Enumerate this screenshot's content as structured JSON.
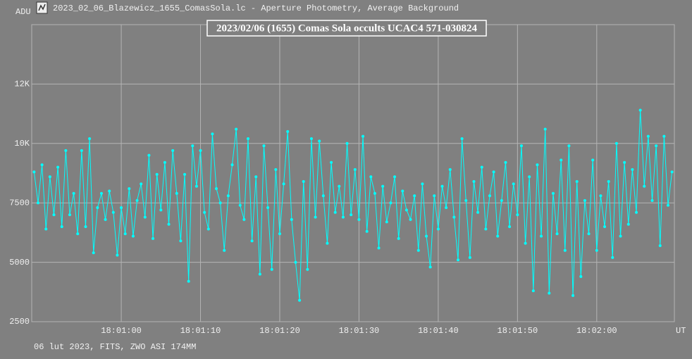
{
  "window_title": "2023_02_06_Blazewicz_1655_ComasSola.lc - Aperture Photometry, Average Background",
  "footer": "06 lut 2023, FITS, ZWO ASI 174MM",
  "chart_data": {
    "type": "line",
    "title": "2023/02/06 (1655) Comas Sola occults UCAC4 571-030824",
    "y_label": "ADU",
    "x_label": "UT",
    "color": "#00ffff",
    "grid": true,
    "xlim": [
      64848.7,
      64929.8
    ],
    "xticks": [
      {
        "value": 64860,
        "label": "18:01:00"
      },
      {
        "value": 64870,
        "label": "18:01:10"
      },
      {
        "value": 64880,
        "label": "18:01:20"
      },
      {
        "value": 64890,
        "label": "18:01:30"
      },
      {
        "value": 64900,
        "label": "18:01:40"
      },
      {
        "value": 64910,
        "label": "18:01:50"
      },
      {
        "value": 64920,
        "label": "18:02:00"
      }
    ],
    "ylim": [
      2500,
      15000
    ],
    "yticks": [
      2500,
      5000,
      7500,
      {
        "value": 10000,
        "label": "10K"
      },
      {
        "value": 12500,
        "label": "12K"
      }
    ],
    "x": [
      64849,
      64849.5,
      64850,
      64850.5,
      64851,
      64851.5,
      64852,
      64852.5,
      64853,
      64853.5,
      64854,
      64854.5,
      64855,
      64855.5,
      64856,
      64856.5,
      64857,
      64857.5,
      64858,
      64858.5,
      64859,
      64859.5,
      64860,
      64860.5,
      64861,
      64861.5,
      64862,
      64862.5,
      64863,
      64863.5,
      64864,
      64864.5,
      64865,
      64865.5,
      64866,
      64866.5,
      64867,
      64867.5,
      64868,
      64868.5,
      64869,
      64869.5,
      64870,
      64870.5,
      64871,
      64871.5,
      64872,
      64872.5,
      64873,
      64873.5,
      64874,
      64874.5,
      64875,
      64875.5,
      64876,
      64876.5,
      64877,
      64877.5,
      64878,
      64878.5,
      64879,
      64879.5,
      64880,
      64880.5,
      64881,
      64881.5,
      64882,
      64882.5,
      64883,
      64883.5,
      64884,
      64884.5,
      64885,
      64885.5,
      64886,
      64886.5,
      64887,
      64887.5,
      64888,
      64888.5,
      64889,
      64889.5,
      64890,
      64890.5,
      64891,
      64891.5,
      64892,
      64892.5,
      64893,
      64893.5,
      64894,
      64894.5,
      64895,
      64895.5,
      64896,
      64896.5,
      64897,
      64897.5,
      64898,
      64898.5,
      64899,
      64899.5,
      64900,
      64900.5,
      64901,
      64901.5,
      64902,
      64902.5,
      64903,
      64903.5,
      64904,
      64904.5,
      64905,
      64905.5,
      64906,
      64906.5,
      64907,
      64907.5,
      64908,
      64908.5,
      64909,
      64909.5,
      64910,
      64910.5,
      64911,
      64911.5,
      64912,
      64912.5,
      64913,
      64913.5,
      64914,
      64914.5,
      64915,
      64915.5,
      64916,
      64916.5,
      64917,
      64917.5,
      64918,
      64918.5,
      64919,
      64919.5,
      64920,
      64920.5,
      64921,
      64921.5,
      64922,
      64922.5,
      64923,
      64923.5,
      64924,
      64924.5,
      64925,
      64925.5,
      64926,
      64926.5,
      64927,
      64927.5,
      64928,
      64928.5,
      64929,
      64929.5
    ],
    "values": [
      8800,
      7500,
      9100,
      6400,
      8600,
      7000,
      9000,
      6500,
      9700,
      7000,
      7900,
      6200,
      9700,
      6500,
      10200,
      5400,
      7300,
      7900,
      6800,
      8000,
      7100,
      5300,
      7300,
      6200,
      8100,
      6100,
      7600,
      8300,
      6900,
      9500,
      6000,
      8700,
      7200,
      9200,
      6600,
      9700,
      7900,
      5900,
      8700,
      4200,
      9900,
      8200,
      9700,
      7100,
      6400,
      10400,
      8100,
      7500,
      5500,
      7800,
      9100,
      10600,
      7400,
      6800,
      10200,
      5900,
      8600,
      4500,
      9900,
      7300,
      4700,
      8900,
      6200,
      8300,
      10500,
      6800,
      5000,
      3400,
      8400,
      4700,
      10200,
      6900,
      10100,
      7800,
      5800,
      9200,
      7100,
      8200,
      6900,
      10000,
      7000,
      8900,
      6800,
      10300,
      6300,
      8600,
      7900,
      5600,
      8200,
      6700,
      7500,
      8600,
      6000,
      8000,
      7200,
      6800,
      7800,
      5500,
      8300,
      6100,
      4800,
      7800,
      6400,
      8200,
      7300,
      8900,
      6900,
      5100,
      10200,
      7600,
      5200,
      8400,
      7100,
      9000,
      6400,
      7800,
      8800,
      6100,
      7600,
      9200,
      6500,
      8300,
      7000,
      9900,
      5800,
      8600,
      3800,
      9100,
      6100,
      10600,
      3700,
      7900,
      6200,
      9300,
      5500,
      9900,
      3600,
      8400,
      4400,
      7600,
      6200,
      9300,
      5500,
      7800,
      6500,
      8400,
      5200,
      10000,
      6100,
      9200,
      6600,
      8900,
      7100,
      11400,
      8200,
      10300,
      7600,
      9900,
      5700,
      10300,
      7400,
      8800
    ]
  }
}
